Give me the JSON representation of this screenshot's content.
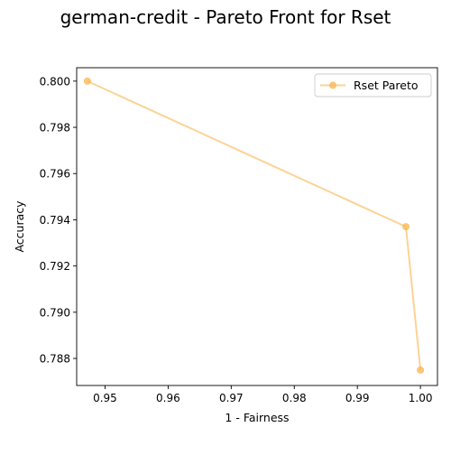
{
  "chart_data": {
    "type": "line",
    "title": "german-credit - Pareto Front for Rset",
    "xlabel": "1 - Fairness",
    "ylabel": "Accuracy",
    "xlim": [
      0.9455,
      1.0027
    ],
    "ylim": [
      0.78683,
      0.80058
    ],
    "xticks": [
      "0.95",
      "0.96",
      "0.97",
      "0.98",
      "0.99",
      "1.00"
    ],
    "yticks": [
      "0.788",
      "0.790",
      "0.792",
      "0.794",
      "0.796",
      "0.798",
      "0.800"
    ],
    "grid": false,
    "legend_position": "top-right",
    "series": [
      {
        "name": "Rset Pareto",
        "color": "#f9b54f",
        "marker": "circle",
        "points": [
          {
            "x": 0.9472,
            "y": 0.8
          },
          {
            "x": 0.9977,
            "y": 0.7937
          },
          {
            "x": 1.0,
            "y": 0.7875
          }
        ]
      }
    ]
  }
}
